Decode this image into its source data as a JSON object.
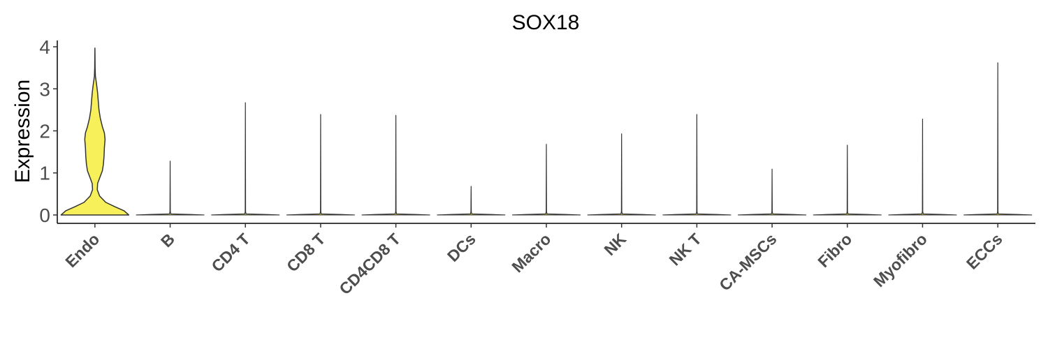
{
  "chart_data": {
    "type": "violin",
    "title": "SOX18",
    "xlabel": "",
    "ylabel": "Expression",
    "ylim": [
      -0.2,
      4.15
    ],
    "yticks": [
      "0",
      "1",
      "2",
      "3",
      "4"
    ],
    "grid": false,
    "legend": "none",
    "fill_color": "#f7f05a",
    "highlight_fill_color": "#f7f05a",
    "categories": [
      "Endo",
      "B",
      "CD4 T",
      "CD8 T",
      "CD4CD8 T",
      "DCs",
      "Macro",
      "NK",
      "NK T",
      "CA-MSCs",
      "Fibro",
      "Myofibro",
      "ECCs"
    ],
    "max_values": [
      3.97,
      1.28,
      2.67,
      2.39,
      2.37,
      0.68,
      1.68,
      1.93,
      2.39,
      1.09,
      1.66,
      2.28,
      3.62
    ],
    "density_profile_endo": [
      {
        "y": 0.0,
        "width": 1.0
      },
      {
        "y": 0.1,
        "width": 0.86
      },
      {
        "y": 0.2,
        "width": 0.58
      },
      {
        "y": 0.3,
        "width": 0.32
      },
      {
        "y": 0.45,
        "width": 0.14
      },
      {
        "y": 0.6,
        "width": 0.07
      },
      {
        "y": 0.75,
        "width": 0.08
      },
      {
        "y": 0.9,
        "width": 0.15
      },
      {
        "y": 1.05,
        "width": 0.22
      },
      {
        "y": 1.2,
        "width": 0.25
      },
      {
        "y": 1.4,
        "width": 0.27
      },
      {
        "y": 1.6,
        "width": 0.28
      },
      {
        "y": 1.8,
        "width": 0.3
      },
      {
        "y": 1.95,
        "width": 0.28
      },
      {
        "y": 2.1,
        "width": 0.22
      },
      {
        "y": 2.3,
        "width": 0.16
      },
      {
        "y": 2.5,
        "width": 0.12
      },
      {
        "y": 2.7,
        "width": 0.1
      },
      {
        "y": 2.9,
        "width": 0.08
      },
      {
        "y": 3.1,
        "width": 0.05
      },
      {
        "y": 3.3,
        "width": 0.015
      },
      {
        "y": 3.5,
        "width": 0.006
      },
      {
        "y": 3.75,
        "width": 0.003
      },
      {
        "y": 3.97,
        "width": 0.0
      }
    ]
  }
}
